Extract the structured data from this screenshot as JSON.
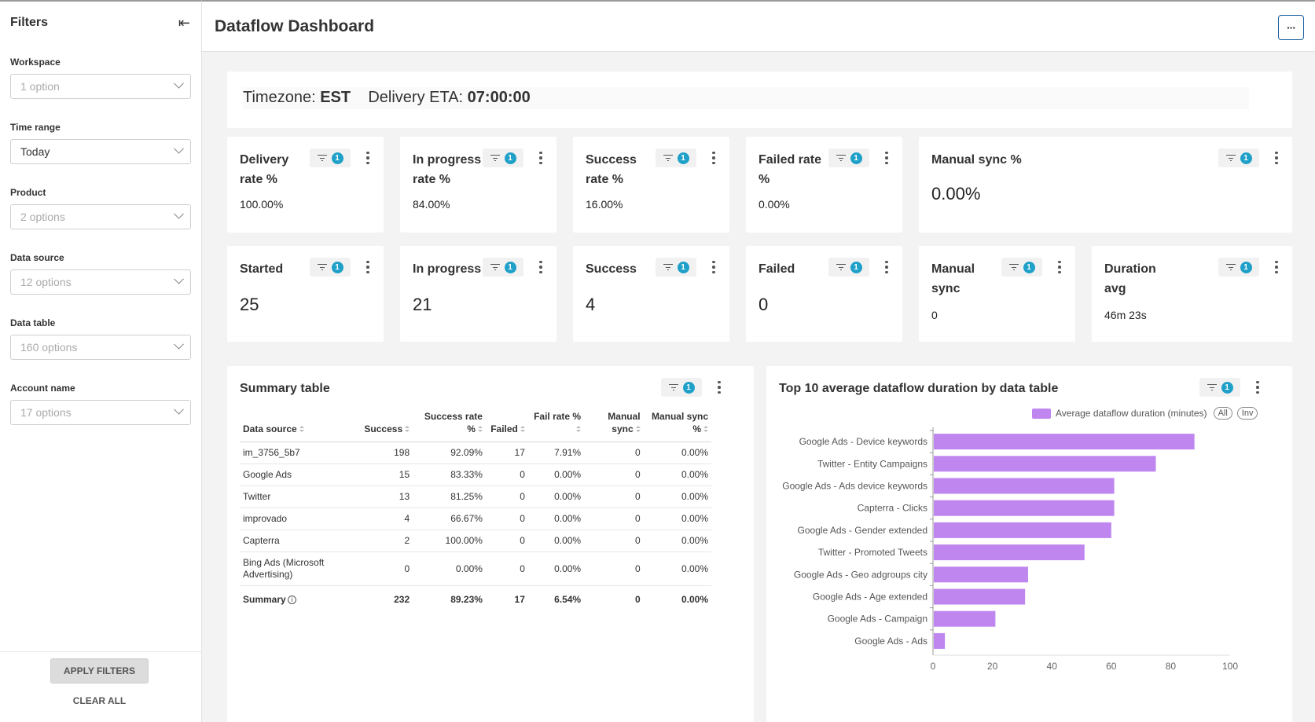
{
  "sidebar": {
    "title": "Filters",
    "collapse_icon": "collapse-left-icon",
    "filters": [
      {
        "label": "Workspace",
        "value": "1 option",
        "active": false
      },
      {
        "label": "Time range",
        "value": "Today",
        "active": true
      },
      {
        "label": "Product",
        "value": "2 options",
        "active": false
      },
      {
        "label": "Data source",
        "value": "12 options",
        "active": false
      },
      {
        "label": "Data table",
        "value": "160 options",
        "active": false
      },
      {
        "label": "Account name",
        "value": "17 options",
        "active": false
      }
    ],
    "apply_label": "APPLY FILTERS",
    "clear_label": "CLEAR ALL"
  },
  "header": {
    "title": "Dataflow Dashboard",
    "more_label": "···"
  },
  "timezone": {
    "tz_label": "Timezone:",
    "tz_value": "EST",
    "eta_label": "Delivery ETA:",
    "eta_value": "07:00:00"
  },
  "filter_badge": "1",
  "kpis_row1": [
    {
      "title": "Delivery rate %",
      "value": "100.00%"
    },
    {
      "title": "In progress rate %",
      "value": "84.00%"
    },
    {
      "title": "Success rate %",
      "value": "16.00%"
    },
    {
      "title": "Failed rate %",
      "value": "0.00%"
    },
    {
      "title": "Manual sync %",
      "value": "0.00%"
    }
  ],
  "kpis_row2": [
    {
      "title": "Started",
      "value": "25"
    },
    {
      "title": "In progress",
      "value": "21"
    },
    {
      "title": "Success",
      "value": "4"
    },
    {
      "title": "Failed",
      "value": "0"
    },
    {
      "title": "Manual sync",
      "value": "0"
    },
    {
      "title": "Duration avg",
      "value": "46m 23s"
    }
  ],
  "summary": {
    "title": "Summary table",
    "headers": [
      "Data source",
      "Success",
      "Success rate %",
      "Failed",
      "Fail rate %",
      "Manual sync",
      "Manual sync %"
    ],
    "rows": [
      [
        "im_3756_5b7",
        "198",
        "92.09%",
        "17",
        "7.91%",
        "0",
        "0.00%"
      ],
      [
        "Google Ads",
        "15",
        "83.33%",
        "0",
        "0.00%",
        "0",
        "0.00%"
      ],
      [
        "Twitter",
        "13",
        "81.25%",
        "0",
        "0.00%",
        "0",
        "0.00%"
      ],
      [
        "improvado",
        "4",
        "66.67%",
        "0",
        "0.00%",
        "0",
        "0.00%"
      ],
      [
        "Capterra",
        "2",
        "100.00%",
        "0",
        "0.00%",
        "0",
        "0.00%"
      ],
      [
        "Bing Ads (Microsoft Advertising)",
        "0",
        "0.00%",
        "0",
        "0.00%",
        "0",
        "0.00%"
      ]
    ],
    "total": [
      "Summary",
      "232",
      "89.23%",
      "17",
      "6.54%",
      "0",
      "0.00%"
    ]
  },
  "chart_data": {
    "type": "bar",
    "orientation": "horizontal",
    "title": "Top 10 average dataflow duration by data table",
    "categories": [
      "Google Ads - Device keywords",
      "Twitter - Entity Campaigns",
      "Google Ads - Ads device keywords",
      "Capterra - Clicks",
      "Google Ads - Gender extended",
      "Twitter - Promoted Tweets",
      "Google Ads - Geo adgroups city",
      "Google Ads - Age extended",
      "Google Ads - Campaign",
      "Google Ads - Ads"
    ],
    "series": [
      {
        "name": "Average dataflow duration (minutes)",
        "values": [
          88,
          75,
          61,
          61,
          60,
          51,
          32,
          31,
          21,
          4
        ],
        "color": "#be86ee"
      }
    ],
    "xlim": [
      0,
      100
    ],
    "xticks": [
      "0",
      "20",
      "40",
      "60",
      "80",
      "100"
    ],
    "legend_buttons": [
      "All",
      "Inv"
    ],
    "legend_position": "top-right"
  }
}
